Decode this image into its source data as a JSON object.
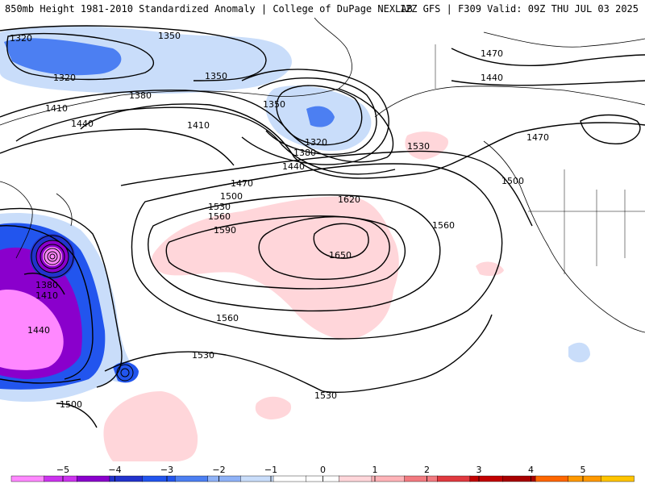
{
  "header": {
    "title": "850mb Height 1981-2010 Standardized Anomaly | College of DuPage NEXLAB",
    "run_info": "12Z GFS | F309 Valid: 09Z THU JUL 03 2025"
  },
  "map": {
    "product": "850mb Height Standardized Anomaly",
    "contour_labels": [
      {
        "text": "1320",
        "name": "contour-label-1320-a"
      },
      {
        "text": "1350",
        "name": "contour-label-1350-a"
      },
      {
        "text": "1320",
        "name": "contour-label-1320-b"
      },
      {
        "text": "1350",
        "name": "contour-label-1350-b"
      },
      {
        "text": "1410",
        "name": "contour-label-1410-a"
      },
      {
        "text": "1380",
        "name": "contour-label-1380-a"
      },
      {
        "text": "1350",
        "name": "contour-label-1350-c"
      },
      {
        "text": "1440",
        "name": "contour-label-1440-a"
      },
      {
        "text": "1410",
        "name": "contour-label-1410-b"
      },
      {
        "text": "1320",
        "name": "contour-label-1320-c"
      },
      {
        "text": "1380",
        "name": "contour-label-1380-b"
      },
      {
        "text": "1440",
        "name": "contour-label-1440-b"
      },
      {
        "text": "1470",
        "name": "contour-label-1470-a"
      },
      {
        "text": "1440",
        "name": "contour-label-1440-c"
      },
      {
        "text": "1470",
        "name": "contour-label-1470-b"
      },
      {
        "text": "1530",
        "name": "contour-label-1530-a"
      },
      {
        "text": "1470",
        "name": "contour-label-1470-c"
      },
      {
        "text": "1500",
        "name": "contour-label-1500-a"
      },
      {
        "text": "1530",
        "name": "contour-label-1530-b"
      },
      {
        "text": "1560",
        "name": "contour-label-1560-a"
      },
      {
        "text": "1590",
        "name": "contour-label-1590"
      },
      {
        "text": "1620",
        "name": "contour-label-1620"
      },
      {
        "text": "1650",
        "name": "contour-label-1650"
      },
      {
        "text": "1500",
        "name": "contour-label-1500-b"
      },
      {
        "text": "1560",
        "name": "contour-label-1560-b"
      },
      {
        "text": "1380",
        "name": "contour-label-1380-c"
      },
      {
        "text": "1410",
        "name": "contour-label-1410-c"
      },
      {
        "text": "1440",
        "name": "contour-label-1440-d"
      },
      {
        "text": "1560",
        "name": "contour-label-1560-c"
      },
      {
        "text": "1530",
        "name": "contour-label-1530-c"
      },
      {
        "text": "1530",
        "name": "contour-label-1530-d"
      },
      {
        "text": "1500",
        "name": "contour-label-1500-c"
      }
    ]
  },
  "colorbar": {
    "ticks": [
      "−5",
      "−4",
      "−3",
      "−2",
      "−1",
      "0",
      "1",
      "2",
      "3",
      "4",
      "5"
    ],
    "colors": [
      "#ff88ff",
      "#cc33ee",
      "#8a00cc",
      "#2233cc",
      "#2255ee",
      "#4c7ff2",
      "#8fb2f7",
      "#c9ddfa",
      "#ffffff",
      "#ffffff",
      "#ffd6da",
      "#ffb3b8",
      "#f27a80",
      "#e0393f",
      "#c20000",
      "#a80000",
      "#ff6600",
      "#ff9900",
      "#ffc400"
    ],
    "units": "standardized anomaly"
  }
}
